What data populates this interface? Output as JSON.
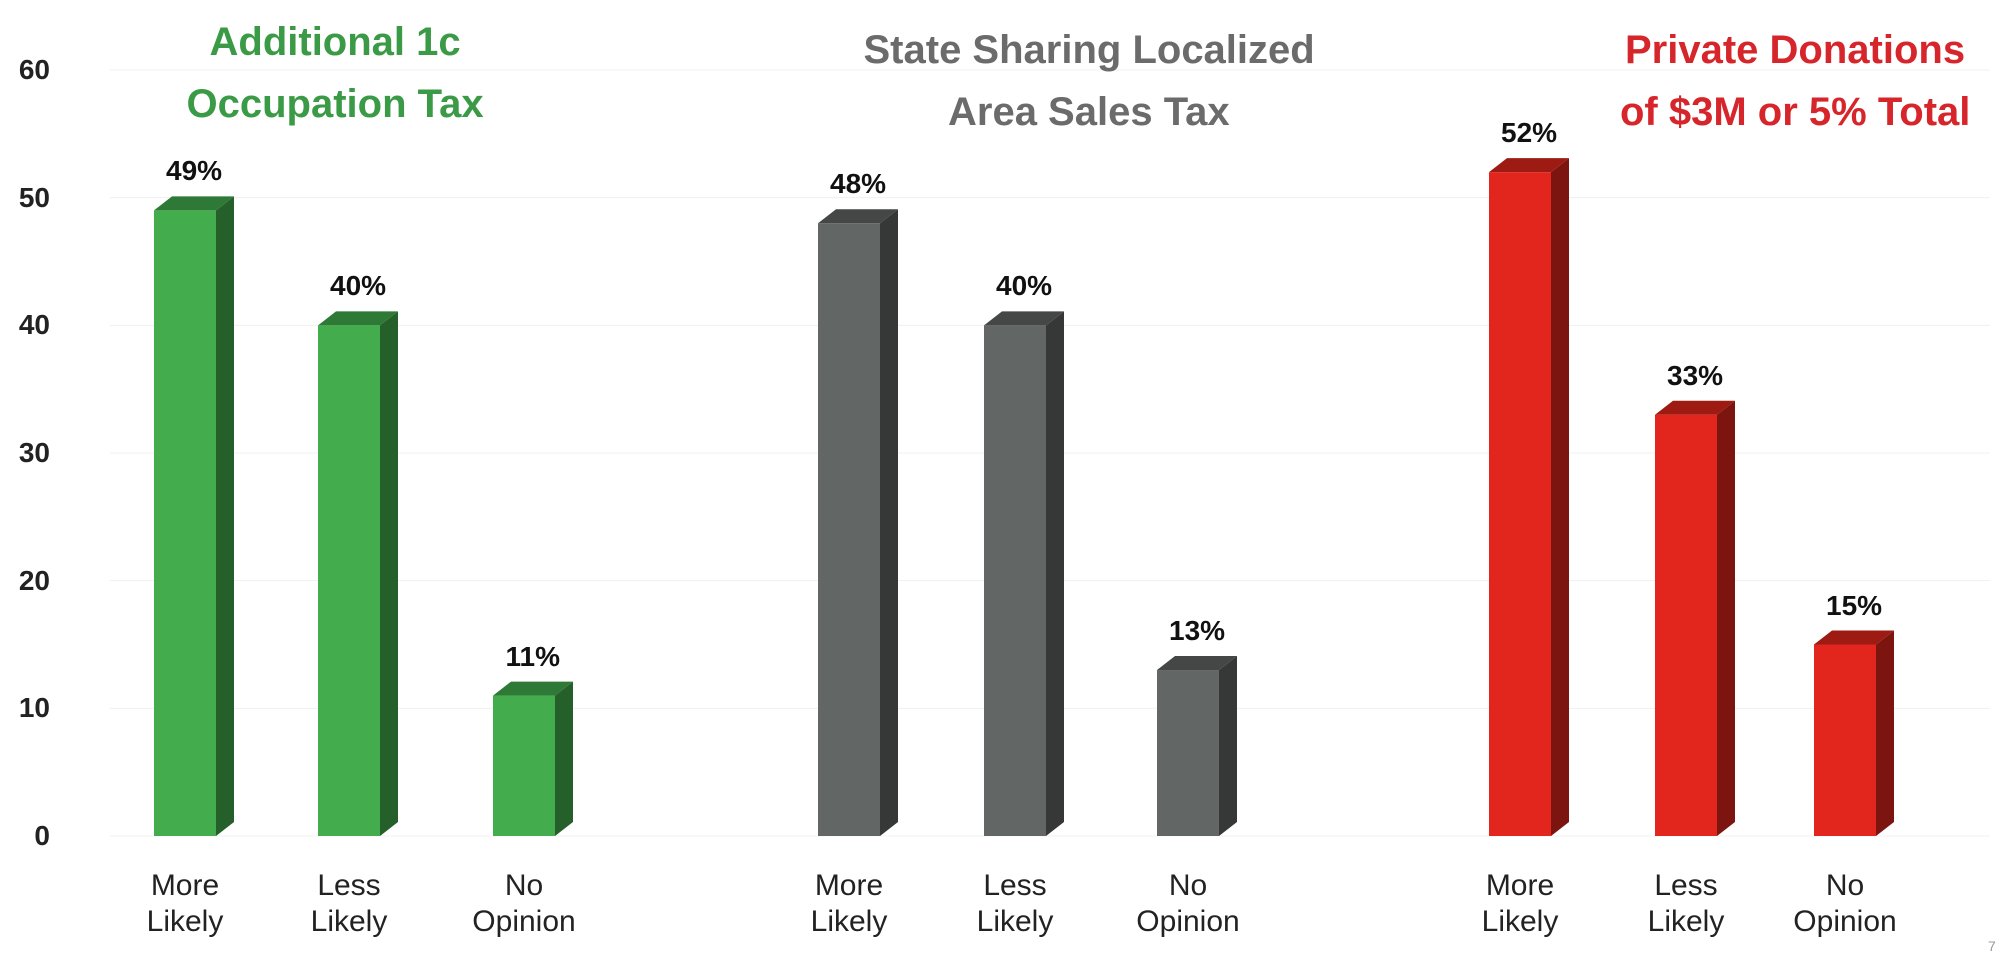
{
  "page_number": "7",
  "chart_data": [
    {
      "type": "bar",
      "title": [
        "Additional 1c",
        "Occupation Tax"
      ],
      "title_color": "#3a9a45",
      "categories": [
        "More Likely",
        "Less Likely",
        "No Opinion"
      ],
      "values": [
        49,
        40,
        11
      ],
      "value_labels": [
        "49%",
        "40%",
        "11%"
      ],
      "color": "#43ad4d",
      "ylim": [
        0,
        60
      ],
      "yticks": [
        0,
        10,
        20,
        30,
        40,
        50,
        60
      ],
      "grid": true
    },
    {
      "type": "bar",
      "title": [
        "State Sharing Localized",
        "Area Sales Tax"
      ],
      "title_color": "#6b6b6b",
      "categories": [
        "More Likely",
        "Less Likely",
        "No Opinion"
      ],
      "values": [
        48,
        40,
        13
      ],
      "value_labels": [
        "48%",
        "40%",
        "13%"
      ],
      "color": "#626664",
      "ylim": [
        0,
        60
      ]
    },
    {
      "type": "bar",
      "title": [
        "Private Donations",
        "of $3M or 5% Total"
      ],
      "title_color": "#d7262b",
      "categories": [
        "More Likely",
        "Less Likely",
        "No Opinion"
      ],
      "values": [
        52,
        33,
        15
      ],
      "value_labels": [
        "52%",
        "33%",
        "15%"
      ],
      "color": "#e2261d",
      "ylim": [
        0,
        60
      ]
    }
  ]
}
